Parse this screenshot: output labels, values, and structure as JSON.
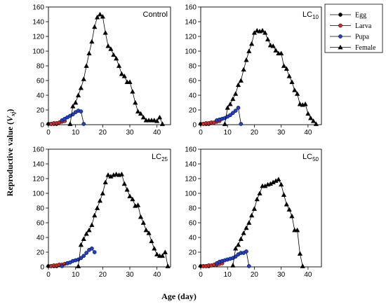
{
  "figure": {
    "xlabel": "Age (day)",
    "ylabel_main": "Reproductive value (",
    "ylabel_var": "V",
    "ylabel_sub": "xj",
    "ylabel_end": ")"
  },
  "legend": {
    "placement": "top-right",
    "items": [
      {
        "name": "Egg",
        "color": "#000000",
        "marker": "circle"
      },
      {
        "name": "Larva",
        "color": "#d62728",
        "marker": "circle"
      },
      {
        "name": "Pupa",
        "color": "#1f3fd0",
        "marker": "circle"
      },
      {
        "name": "Female",
        "color": "#000000",
        "marker": "triangle"
      }
    ]
  },
  "chart_data": [
    {
      "type": "line",
      "label": "Control",
      "label_sub": "",
      "xlim": [
        0,
        45
      ],
      "ylim": [
        0,
        160
      ],
      "xticks": [
        0,
        10,
        20,
        30,
        40
      ],
      "yticks": [
        0,
        20,
        40,
        60,
        80,
        100,
        120,
        140,
        160
      ],
      "series": [
        {
          "name": "Egg",
          "x": [
            0,
            1,
            2,
            3
          ],
          "y": [
            1,
            1,
            1,
            1
          ]
        },
        {
          "name": "Larva",
          "x": [
            1,
            2,
            3,
            4,
            5,
            6
          ],
          "y": [
            1,
            2,
            2,
            3,
            4,
            5
          ]
        },
        {
          "name": "Pupa",
          "x": [
            5,
            6,
            7,
            8,
            9,
            10,
            11,
            12,
            13
          ],
          "y": [
            6,
            8,
            10,
            12,
            14,
            17,
            19,
            18,
            1
          ]
        },
        {
          "name": "Female",
          "x": [
            8,
            9,
            10,
            11,
            12,
            13,
            14,
            15,
            16,
            17,
            18,
            19,
            20,
            21,
            22,
            23,
            24,
            25,
            26,
            27,
            28,
            29,
            30,
            31,
            32,
            33,
            34,
            35,
            36,
            37,
            38,
            39,
            40,
            41,
            42
          ],
          "y": [
            1,
            25,
            30,
            40,
            50,
            62,
            80,
            97,
            113,
            133,
            146,
            150,
            147,
            125,
            107,
            103,
            95,
            90,
            80,
            69,
            66,
            58,
            58,
            45,
            30,
            18,
            15,
            10,
            6,
            6,
            6,
            6,
            5,
            10,
            1
          ]
        }
      ]
    },
    {
      "type": "line",
      "label": "LC",
      "label_sub": "10",
      "xlim": [
        0,
        45
      ],
      "ylim": [
        0,
        160
      ],
      "xticks": [
        0,
        10,
        20,
        30,
        40
      ],
      "yticks": [
        0,
        20,
        40,
        60,
        80,
        100,
        120,
        140,
        160
      ],
      "series": [
        {
          "name": "Egg",
          "x": [
            0,
            1,
            2,
            3
          ],
          "y": [
            1,
            1,
            1,
            1
          ]
        },
        {
          "name": "Larva",
          "x": [
            1,
            2,
            3,
            4,
            5,
            6,
            7
          ],
          "y": [
            1,
            2,
            2,
            3,
            3,
            4,
            5
          ]
        },
        {
          "name": "Pupa",
          "x": [
            6,
            7,
            8,
            9,
            10,
            11,
            12,
            13,
            14,
            15
          ],
          "y": [
            6,
            7,
            8,
            9,
            11,
            13,
            16,
            19,
            23,
            1
          ]
        },
        {
          "name": "Female",
          "x": [
            9,
            10,
            11,
            12,
            13,
            14,
            15,
            16,
            17,
            18,
            19,
            20,
            21,
            22,
            23,
            24,
            25,
            26,
            27,
            28,
            29,
            30,
            31,
            32,
            33,
            34,
            35,
            36,
            37,
            38,
            39,
            40,
            41,
            42,
            43
          ],
          "y": [
            1,
            23,
            28,
            35,
            42,
            54,
            60,
            75,
            88,
            100,
            110,
            125,
            128,
            127,
            128,
            125,
            116,
            108,
            107,
            101,
            97,
            97,
            80,
            76,
            66,
            58,
            47,
            42,
            28,
            27,
            28,
            15,
            9,
            5,
            1
          ]
        }
      ]
    },
    {
      "type": "line",
      "label": "LC",
      "label_sub": "25",
      "xlim": [
        0,
        45
      ],
      "ylim": [
        0,
        160
      ],
      "xticks": [
        0,
        10,
        20,
        30,
        40
      ],
      "yticks": [
        0,
        20,
        40,
        60,
        80,
        100,
        120,
        140,
        160
      ],
      "series": [
        {
          "name": "Egg",
          "x": [
            0,
            1,
            2,
            3
          ],
          "y": [
            1,
            1,
            1,
            1
          ]
        },
        {
          "name": "Larva",
          "x": [
            1,
            2,
            3,
            4,
            5,
            6,
            7
          ],
          "y": [
            1,
            2,
            2,
            3,
            3,
            4,
            5
          ]
        },
        {
          "name": "Pupa",
          "x": [
            5,
            7,
            8,
            9,
            10,
            11,
            12,
            13,
            14,
            15,
            16,
            17
          ],
          "y": [
            1,
            5,
            6,
            8,
            9,
            10,
            12,
            15,
            19,
            23,
            25,
            20
          ]
        },
        {
          "name": "Female",
          "x": [
            11,
            12,
            13,
            14,
            15,
            16,
            17,
            18,
            19,
            20,
            21,
            22,
            23,
            24,
            25,
            26,
            27,
            28,
            29,
            30,
            31,
            32,
            33,
            34,
            35,
            36,
            37,
            38,
            39,
            40,
            41,
            42,
            43,
            44
          ],
          "y": [
            1,
            30,
            38,
            45,
            50,
            57,
            70,
            80,
            90,
            100,
            115,
            125,
            123,
            125,
            126,
            125,
            126,
            113,
            105,
            96,
            92,
            83,
            84,
            68,
            60,
            50,
            46,
            35,
            25,
            17,
            15,
            15,
            20,
            1
          ]
        }
      ]
    },
    {
      "type": "line",
      "label": "LC",
      "label_sub": "50",
      "xlim": [
        0,
        45
      ],
      "ylim": [
        0,
        160
      ],
      "xticks": [
        0,
        10,
        20,
        30,
        40
      ],
      "yticks": [
        0,
        20,
        40,
        60,
        80,
        100,
        120,
        140,
        160
      ],
      "series": [
        {
          "name": "Egg",
          "x": [
            0,
            1,
            2,
            3
          ],
          "y": [
            1,
            1,
            1,
            1
          ]
        },
        {
          "name": "Larva",
          "x": [
            1,
            2,
            3,
            4,
            5,
            6,
            7,
            8
          ],
          "y": [
            1,
            1,
            2,
            2,
            3,
            3,
            4,
            5
          ]
        },
        {
          "name": "Pupa",
          "x": [
            6,
            7,
            8,
            9,
            10,
            11,
            12,
            13,
            14,
            15,
            16,
            17,
            18
          ],
          "y": [
            5,
            7,
            8,
            9,
            10,
            11,
            12,
            14,
            17,
            19,
            19,
            21,
            1
          ]
        },
        {
          "name": "Female",
          "x": [
            12,
            13,
            14,
            15,
            16,
            17,
            18,
            19,
            20,
            21,
            22,
            23,
            24,
            25,
            26,
            27,
            28,
            29,
            30,
            31,
            32,
            33,
            34,
            35,
            36,
            37,
            38
          ],
          "y": [
            2,
            25,
            30,
            38,
            46,
            53,
            60,
            70,
            79,
            92,
            100,
            110,
            110,
            112,
            113,
            115,
            117,
            119,
            112,
            98,
            85,
            78,
            69,
            50,
            50,
            18,
            1
          ]
        }
      ]
    }
  ]
}
